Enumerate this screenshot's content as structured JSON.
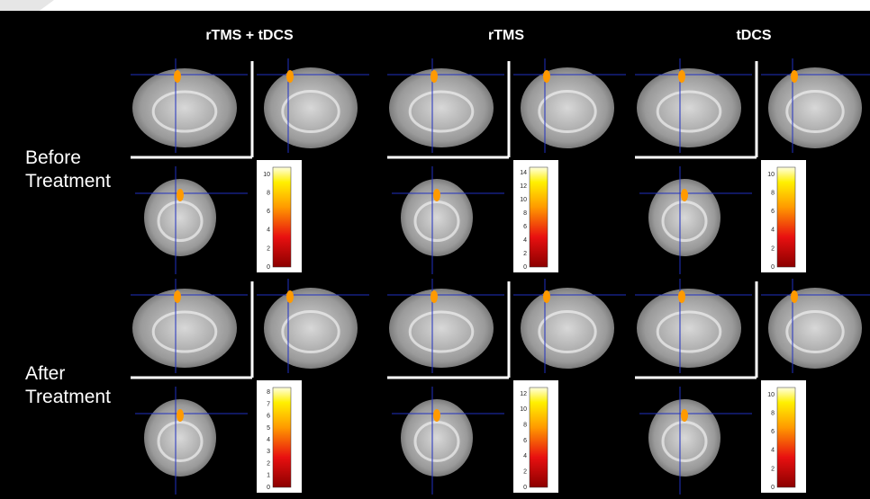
{
  "columns": [
    "rTMS + tDCS",
    "rTMS",
    "tDCS"
  ],
  "rows": [
    "Before Treatment",
    "After Treatment"
  ],
  "colorbar_ticks": [
    [
      [
        0,
        2,
        4,
        6,
        8,
        10
      ],
      [
        0,
        2,
        4,
        6,
        8,
        10,
        12,
        14
      ],
      [
        0,
        2,
        4,
        6,
        8,
        10
      ]
    ],
    [
      [
        0,
        1,
        2,
        3,
        4,
        5,
        6,
        7,
        8
      ],
      [
        0,
        2,
        4,
        6,
        8,
        10,
        12
      ],
      [
        0,
        2,
        4,
        6,
        8,
        10
      ]
    ]
  ]
}
